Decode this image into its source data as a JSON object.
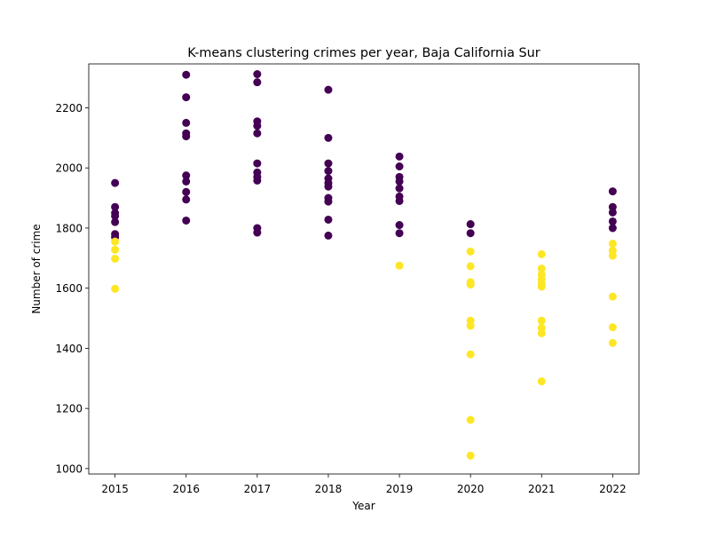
{
  "chart_data": {
    "type": "scatter",
    "title": "K-means clustering crimes per year, Baja California Sur",
    "xlabel": "Year",
    "ylabel": "Number of crime",
    "xlim": [
      2014.63,
      2022.37
    ],
    "ylim": [
      982,
      2346
    ],
    "x_ticks": [
      2015,
      2016,
      2017,
      2018,
      2019,
      2020,
      2021,
      2022
    ],
    "y_ticks": [
      1000,
      1200,
      1400,
      1600,
      1800,
      2000,
      2200
    ],
    "grid": false,
    "legend": "none",
    "series": [
      {
        "color": "#440154",
        "points": [
          [
            2015,
            1950
          ],
          [
            2015,
            1870
          ],
          [
            2015,
            1850
          ],
          [
            2015,
            1840
          ],
          [
            2015,
            1820
          ],
          [
            2015,
            1780
          ],
          [
            2015,
            1770
          ],
          [
            2016,
            2310
          ],
          [
            2016,
            2235
          ],
          [
            2016,
            2150
          ],
          [
            2016,
            2115
          ],
          [
            2016,
            2105
          ],
          [
            2016,
            1975
          ],
          [
            2016,
            1955
          ],
          [
            2016,
            1920
          ],
          [
            2016,
            1895
          ],
          [
            2016,
            1825
          ],
          [
            2017,
            2312
          ],
          [
            2017,
            2285
          ],
          [
            2017,
            2155
          ],
          [
            2017,
            2140
          ],
          [
            2017,
            2115
          ],
          [
            2017,
            2015
          ],
          [
            2017,
            1985
          ],
          [
            2017,
            1970
          ],
          [
            2017,
            1958
          ],
          [
            2017,
            1800
          ],
          [
            2017,
            1785
          ],
          [
            2018,
            2260
          ],
          [
            2018,
            2100
          ],
          [
            2018,
            2015
          ],
          [
            2018,
            1990
          ],
          [
            2018,
            1965
          ],
          [
            2018,
            1950
          ],
          [
            2018,
            1938
          ],
          [
            2018,
            1900
          ],
          [
            2018,
            1888
          ],
          [
            2018,
            1828
          ],
          [
            2018,
            1775
          ],
          [
            2019,
            2038
          ],
          [
            2019,
            2005
          ],
          [
            2019,
            1970
          ],
          [
            2019,
            1955
          ],
          [
            2019,
            1932
          ],
          [
            2019,
            1905
          ],
          [
            2019,
            1890
          ],
          [
            2019,
            1810
          ],
          [
            2019,
            1783
          ],
          [
            2020,
            1813
          ],
          [
            2020,
            1783
          ],
          [
            2022,
            1922
          ],
          [
            2022,
            1870
          ],
          [
            2022,
            1852
          ],
          [
            2022,
            1822
          ],
          [
            2022,
            1800
          ]
        ]
      },
      {
        "color": "#fde725",
        "points": [
          [
            2015,
            1755
          ],
          [
            2015,
            1728
          ],
          [
            2015,
            1698
          ],
          [
            2015,
            1598
          ],
          [
            2019,
            1675
          ],
          [
            2020,
            1722
          ],
          [
            2020,
            1673
          ],
          [
            2020,
            1620
          ],
          [
            2020,
            1612
          ],
          [
            2020,
            1492
          ],
          [
            2020,
            1475
          ],
          [
            2020,
            1380
          ],
          [
            2020,
            1162
          ],
          [
            2020,
            1043
          ],
          [
            2021,
            1713
          ],
          [
            2021,
            1665
          ],
          [
            2021,
            1645
          ],
          [
            2021,
            1630
          ],
          [
            2021,
            1615
          ],
          [
            2021,
            1605
          ],
          [
            2021,
            1492
          ],
          [
            2021,
            1468
          ],
          [
            2021,
            1450
          ],
          [
            2021,
            1290
          ],
          [
            2022,
            1748
          ],
          [
            2022,
            1725
          ],
          [
            2022,
            1708
          ],
          [
            2022,
            1572
          ],
          [
            2022,
            1470
          ],
          [
            2022,
            1418
          ]
        ]
      }
    ]
  }
}
